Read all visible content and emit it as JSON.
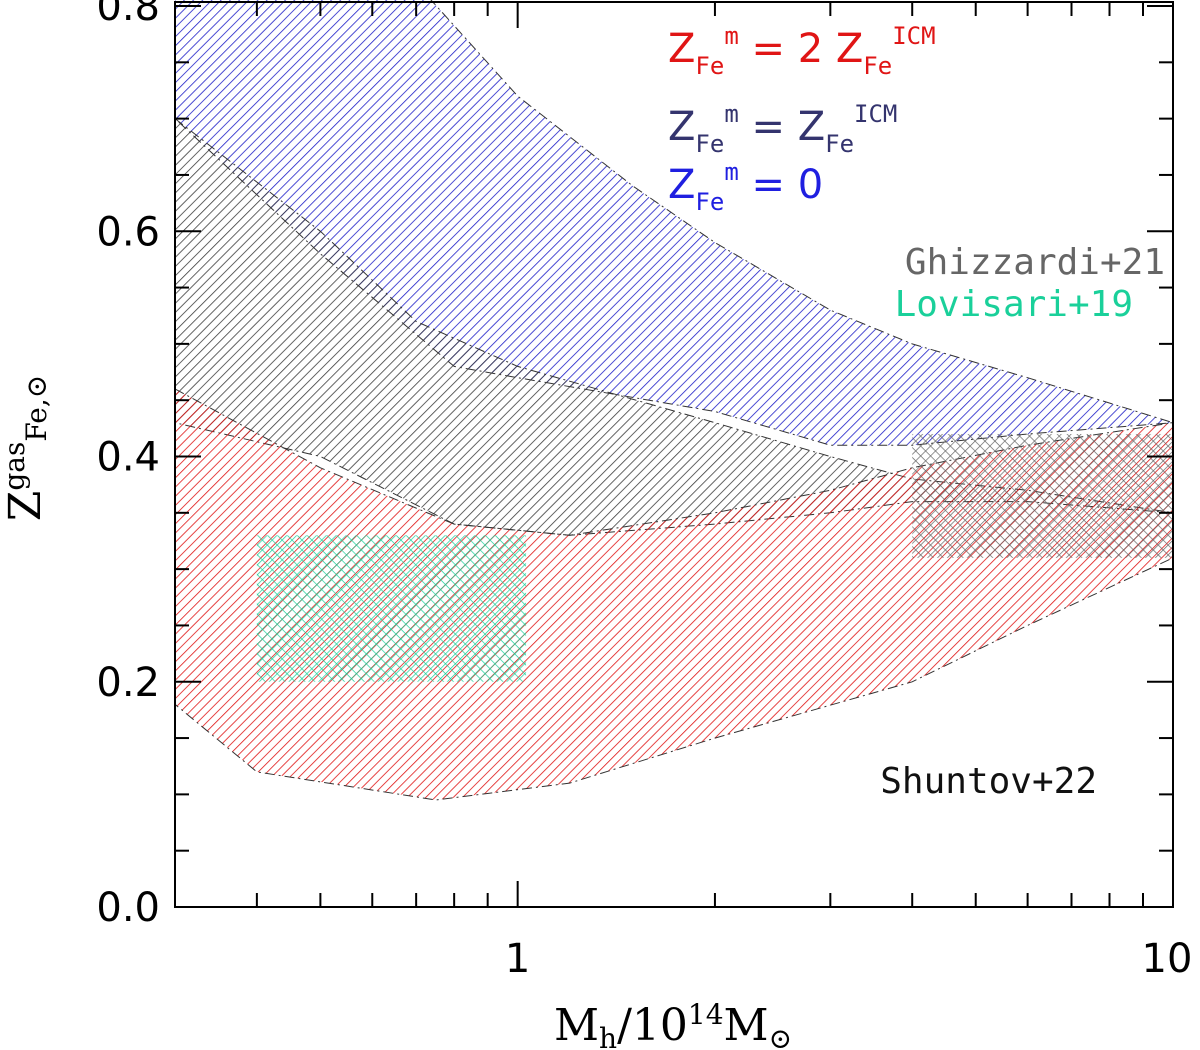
{
  "chart_data": {
    "type": "area",
    "xlabel": {
      "main": "M",
      "sub": "h",
      "mid": "/10",
      "sup": "14",
      "tail": "M",
      "sub2": "⊙"
    },
    "ylabel": {
      "main": "Z",
      "sup": "gas",
      "sub": "Fe,⊙"
    },
    "xscale": "log",
    "xlim": [
      0.3,
      10
    ],
    "ylim": [
      0.0,
      0.8
    ],
    "x_ticks": [
      {
        "value": 1,
        "label": "1"
      },
      {
        "value": 10,
        "label": "10"
      }
    ],
    "y_ticks": [
      {
        "value": 0.0,
        "label": "0.0"
      },
      {
        "value": 0.2,
        "label": "0.2"
      },
      {
        "value": 0.4,
        "label": "0.4"
      },
      {
        "value": 0.6,
        "label": "0.6"
      },
      {
        "value": 0.8,
        "label": "0.8"
      }
    ],
    "bands": [
      {
        "key": "zero",
        "color": "#1f1fc8",
        "upper": [
          [
            0.3,
            0.82
          ],
          [
            0.7,
            0.82
          ],
          [
            1.0,
            0.72
          ],
          [
            1.5,
            0.64
          ],
          [
            2.0,
            0.59
          ],
          [
            3.0,
            0.53
          ],
          [
            4.0,
            0.5
          ],
          [
            6.0,
            0.47
          ],
          [
            10.0,
            0.43
          ]
        ],
        "lower": [
          [
            0.3,
            0.7
          ],
          [
            0.5,
            0.58
          ],
          [
            0.8,
            0.48
          ],
          [
            1.0,
            0.47
          ],
          [
            2.0,
            0.44
          ],
          [
            3.0,
            0.41
          ],
          [
            4.0,
            0.41
          ],
          [
            6.0,
            0.42
          ],
          [
            10.0,
            0.43
          ]
        ]
      },
      {
        "key": "equal",
        "color": "#3c3c3c",
        "upper": [
          [
            0.3,
            0.7
          ],
          [
            0.5,
            0.6
          ],
          [
            0.7,
            0.52
          ],
          [
            1.0,
            0.48
          ],
          [
            2.0,
            0.43
          ],
          [
            3.0,
            0.4
          ],
          [
            4.0,
            0.38
          ],
          [
            6.0,
            0.37
          ],
          [
            10.0,
            0.35
          ]
        ],
        "lower": [
          [
            0.3,
            0.43
          ],
          [
            0.5,
            0.4
          ],
          [
            0.8,
            0.34
          ],
          [
            1.2,
            0.33
          ],
          [
            2.0,
            0.34
          ],
          [
            3.0,
            0.35
          ],
          [
            4.0,
            0.36
          ],
          [
            6.0,
            0.36
          ],
          [
            10.0,
            0.35
          ]
        ]
      },
      {
        "key": "double",
        "color": "#e01515",
        "upper": [
          [
            0.3,
            0.46
          ],
          [
            0.5,
            0.39
          ],
          [
            0.8,
            0.34
          ],
          [
            1.2,
            0.33
          ],
          [
            2.0,
            0.35
          ],
          [
            3.0,
            0.37
          ],
          [
            4.0,
            0.39
          ],
          [
            6.0,
            0.41
          ],
          [
            10.0,
            0.43
          ]
        ],
        "lower": [
          [
            0.3,
            0.18
          ],
          [
            0.4,
            0.12
          ],
          [
            0.75,
            0.095
          ],
          [
            1.2,
            0.11
          ],
          [
            2.0,
            0.15
          ],
          [
            4.0,
            0.2
          ],
          [
            6.0,
            0.25
          ],
          [
            10.0,
            0.31
          ]
        ]
      }
    ],
    "obs_boxes": [
      {
        "key": "lovisari",
        "color": "#1ad09a",
        "x_range": [
          0.4,
          1.03
        ],
        "y_range": [
          0.2,
          0.33
        ]
      },
      {
        "key": "ghizzardi",
        "color": "#666666",
        "x_range": [
          4.0,
          10.0
        ],
        "y_range": [
          0.31,
          0.42
        ]
      }
    ],
    "legend": [
      {
        "key": "double",
        "color": "#e01515",
        "prefix": "Z",
        "sub": "Fe",
        "sup": "m",
        "eq": " = 2 Z",
        "sub2": "Fe",
        "sup2": "ICM"
      },
      {
        "key": "equal",
        "color": "#34346e",
        "prefix": "Z",
        "sub": "Fe",
        "sup": "m",
        "eq": " = Z",
        "sub2": "Fe",
        "sup2": "ICM"
      },
      {
        "key": "zero",
        "color": "#1f1fe0",
        "prefix": "Z",
        "sub": "Fe",
        "sup": "m",
        "eq": " = 0",
        "sub2": "",
        "sup2": ""
      }
    ],
    "annotations": [
      {
        "key": "ghizzardi",
        "text": "Ghizzardi+21",
        "color": "#666666"
      },
      {
        "key": "lovisari",
        "text": "Lovisari+19",
        "color": "#1ad09a"
      },
      {
        "key": "shuntov",
        "text": "Shuntov+22",
        "color": "#111111"
      }
    ]
  }
}
